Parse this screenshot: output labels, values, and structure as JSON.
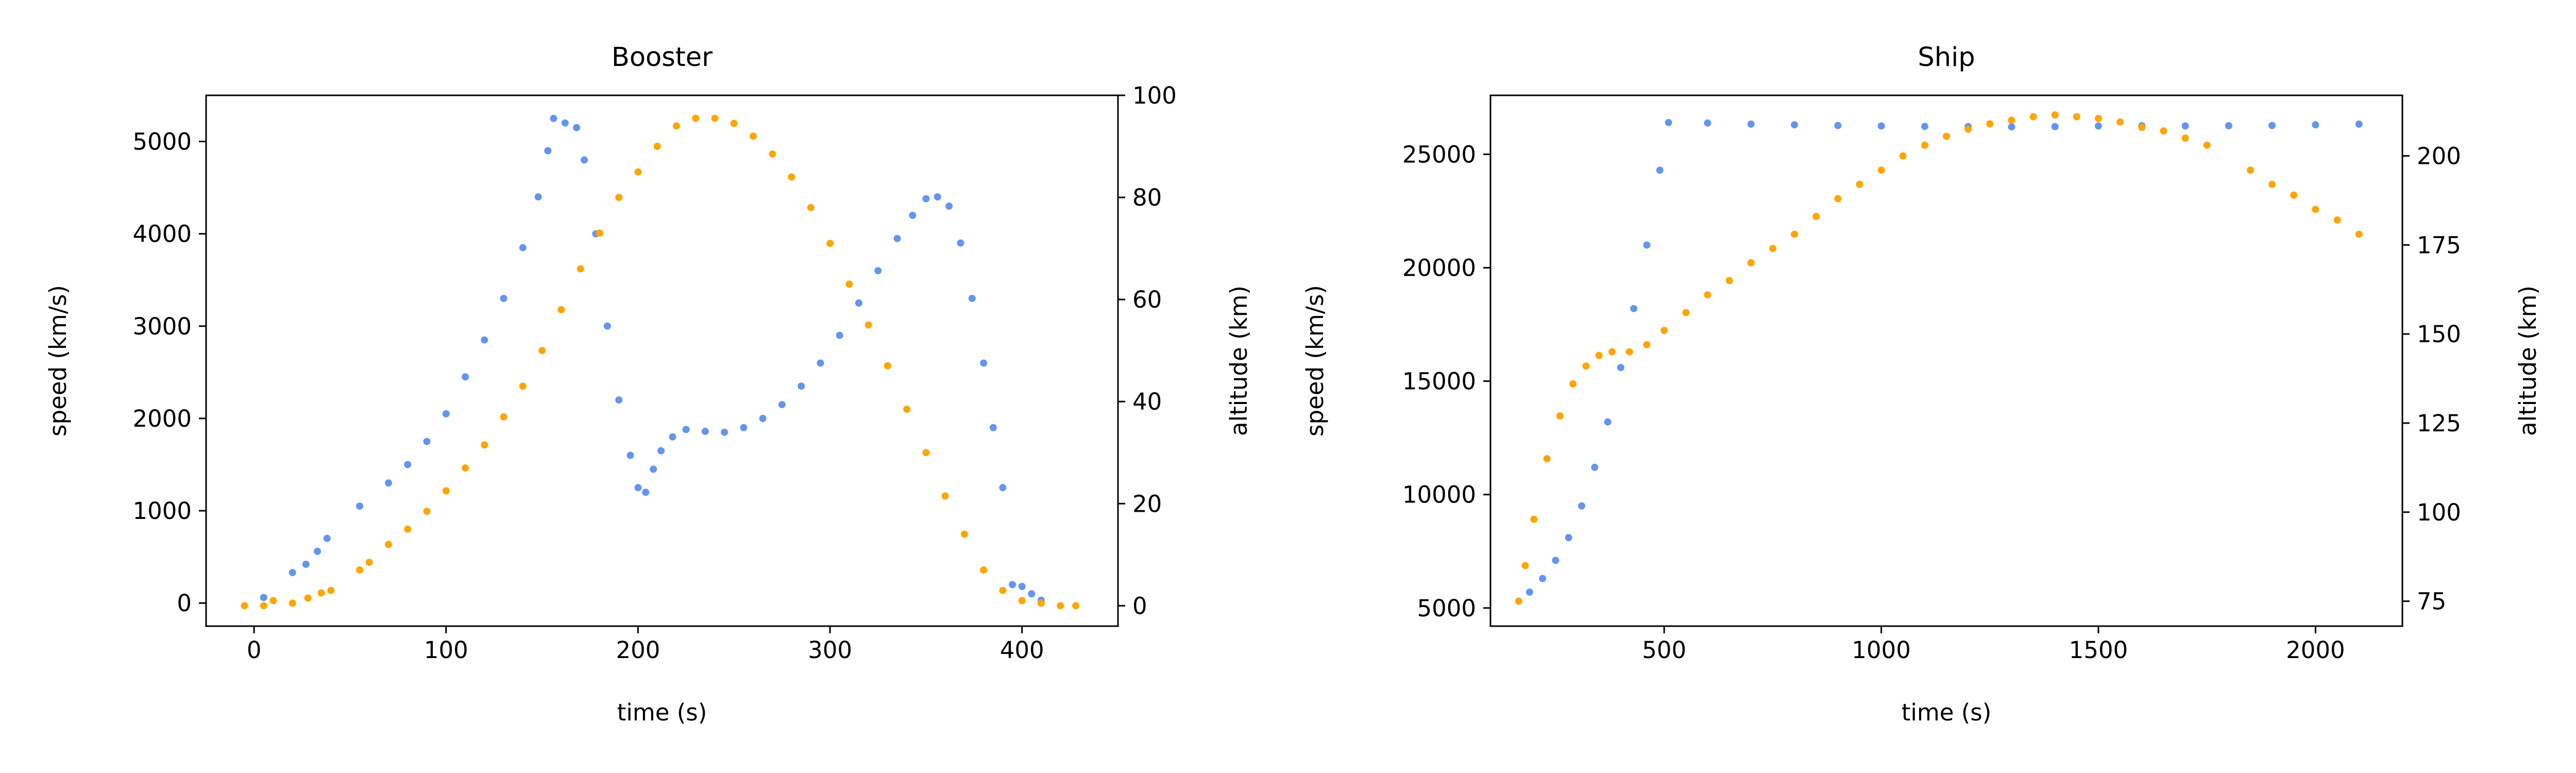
{
  "colors": {
    "speed": "#6495ed",
    "altitude": "#ffa500"
  },
  "chart_data": [
    {
      "type": "scatter",
      "title": "Booster",
      "xlabel": "time (s)",
      "ylabel": "speed (km/s)",
      "y2label": "altitude (km)",
      "xlim": [
        -25,
        450
      ],
      "ylim": [
        -250,
        5500
      ],
      "y2lim": [
        -4,
        100
      ],
      "xticks": [
        0,
        100,
        200,
        300,
        400
      ],
      "yticks": [
        0,
        1000,
        2000,
        3000,
        4000,
        5000
      ],
      "y2ticks": [
        0,
        20,
        40,
        60,
        80,
        100
      ],
      "grid": false,
      "series": [
        {
          "axis": "left",
          "color": "#6495ed",
          "points": [
            [
              5,
              60
            ],
            [
              20,
              330
            ],
            [
              27,
              420
            ],
            [
              33,
              560
            ],
            [
              38,
              700
            ],
            [
              55,
              1050
            ],
            [
              70,
              1300
            ],
            [
              80,
              1500
            ],
            [
              90,
              1750
            ],
            [
              100,
              2050
            ],
            [
              110,
              2450
            ],
            [
              120,
              2850
            ],
            [
              130,
              3300
            ],
            [
              140,
              3850
            ],
            [
              148,
              4400
            ],
            [
              153,
              4900
            ],
            [
              156,
              5250
            ],
            [
              162,
              5200
            ],
            [
              168,
              5150
            ],
            [
              172,
              4800
            ],
            [
              178,
              4000
            ],
            [
              184,
              3000
            ],
            [
              190,
              2200
            ],
            [
              196,
              1600
            ],
            [
              200,
              1250
            ],
            [
              204,
              1200
            ],
            [
              208,
              1450
            ],
            [
              212,
              1650
            ],
            [
              218,
              1800
            ],
            [
              225,
              1880
            ],
            [
              235,
              1860
            ],
            [
              245,
              1850
            ],
            [
              255,
              1900
            ],
            [
              265,
              2000
            ],
            [
              275,
              2150
            ],
            [
              285,
              2350
            ],
            [
              295,
              2600
            ],
            [
              305,
              2900
            ],
            [
              315,
              3250
            ],
            [
              325,
              3600
            ],
            [
              335,
              3950
            ],
            [
              343,
              4200
            ],
            [
              350,
              4380
            ],
            [
              356,
              4400
            ],
            [
              362,
              4300
            ],
            [
              368,
              3900
            ],
            [
              374,
              3300
            ],
            [
              380,
              2600
            ],
            [
              385,
              1900
            ],
            [
              390,
              1250
            ],
            [
              395,
              200
            ],
            [
              400,
              180
            ],
            [
              405,
              100
            ],
            [
              410,
              30
            ]
          ]
        },
        {
          "axis": "right",
          "color": "#ffa500",
          "points": [
            [
              -5,
              0
            ],
            [
              5,
              0
            ],
            [
              10,
              1
            ],
            [
              20,
              0.5
            ],
            [
              28,
              1.5
            ],
            [
              35,
              2.5
            ],
            [
              40,
              3
            ],
            [
              55,
              7
            ],
            [
              60,
              8.5
            ],
            [
              70,
              12
            ],
            [
              80,
              15
            ],
            [
              90,
              18.5
            ],
            [
              100,
              22.5
            ],
            [
              110,
              27
            ],
            [
              120,
              31.5
            ],
            [
              130,
              37
            ],
            [
              140,
              43
            ],
            [
              150,
              50
            ],
            [
              160,
              58
            ],
            [
              170,
              66
            ],
            [
              180,
              73
            ],
            [
              190,
              80
            ],
            [
              200,
              85
            ],
            [
              210,
              90
            ],
            [
              220,
              94
            ],
            [
              230,
              95.5
            ],
            [
              240,
              95.5
            ],
            [
              250,
              94.5
            ],
            [
              260,
              92
            ],
            [
              270,
              88.5
            ],
            [
              280,
              84
            ],
            [
              290,
              78
            ],
            [
              300,
              71
            ],
            [
              310,
              63
            ],
            [
              320,
              55
            ],
            [
              330,
              47
            ],
            [
              340,
              38.5
            ],
            [
              350,
              30
            ],
            [
              360,
              21.5
            ],
            [
              370,
              14
            ],
            [
              380,
              7
            ],
            [
              390,
              3
            ],
            [
              400,
              1
            ],
            [
              410,
              0.5
            ],
            [
              420,
              0
            ],
            [
              428,
              0
            ]
          ]
        }
      ]
    },
    {
      "type": "scatter",
      "title": "Ship",
      "xlabel": "time (s)",
      "ylabel": "speed (km/s)",
      "y2label": "altitude (km)",
      "xlim": [
        100,
        2200
      ],
      "ylim": [
        4200,
        27600
      ],
      "y2lim": [
        68,
        217
      ],
      "xticks": [
        500,
        1000,
        1500,
        2000
      ],
      "yticks": [
        5000,
        10000,
        15000,
        20000,
        25000
      ],
      "y2ticks": [
        75,
        100,
        125,
        150,
        175,
        200
      ],
      "grid": false,
      "series": [
        {
          "axis": "left",
          "color": "#6495ed",
          "points": [
            [
              165,
              5300
            ],
            [
              190,
              5700
            ],
            [
              220,
              6300
            ],
            [
              250,
              7100
            ],
            [
              280,
              8100
            ],
            [
              310,
              9500
            ],
            [
              340,
              11200
            ],
            [
              370,
              13200
            ],
            [
              400,
              15600
            ],
            [
              430,
              18200
            ],
            [
              460,
              21000
            ],
            [
              490,
              24300
            ],
            [
              510,
              26400
            ],
            [
              600,
              26380
            ],
            [
              700,
              26330
            ],
            [
              800,
              26300
            ],
            [
              900,
              26270
            ],
            [
              1000,
              26250
            ],
            [
              1100,
              26230
            ],
            [
              1200,
              26220
            ],
            [
              1300,
              26210
            ],
            [
              1400,
              26220
            ],
            [
              1500,
              26250
            ],
            [
              1600,
              26260
            ],
            [
              1700,
              26250
            ],
            [
              1800,
              26260
            ],
            [
              1900,
              26270
            ],
            [
              2000,
              26300
            ],
            [
              2100,
              26330
            ]
          ]
        },
        {
          "axis": "right",
          "color": "#ffa500",
          "points": [
            [
              165,
              75
            ],
            [
              180,
              85
            ],
            [
              200,
              98
            ],
            [
              230,
              115
            ],
            [
              260,
              127
            ],
            [
              290,
              136
            ],
            [
              320,
              141
            ],
            [
              350,
              144
            ],
            [
              380,
              145
            ],
            [
              420,
              145
            ],
            [
              460,
              147
            ],
            [
              500,
              151
            ],
            [
              550,
              156
            ],
            [
              600,
              161
            ],
            [
              650,
              165
            ],
            [
              700,
              170
            ],
            [
              750,
              174
            ],
            [
              800,
              178
            ],
            [
              850,
              183
            ],
            [
              900,
              188
            ],
            [
              950,
              192
            ],
            [
              1000,
              196
            ],
            [
              1050,
              200
            ],
            [
              1100,
              203
            ],
            [
              1150,
              205.5
            ],
            [
              1200,
              207.5
            ],
            [
              1250,
              209
            ],
            [
              1300,
              210
            ],
            [
              1350,
              211
            ],
            [
              1400,
              211.5
            ],
            [
              1450,
              211
            ],
            [
              1500,
              210.5
            ],
            [
              1550,
              209.5
            ],
            [
              1600,
              208
            ],
            [
              1650,
              207
            ],
            [
              1700,
              205
            ],
            [
              1750,
              203
            ],
            [
              1850,
              196
            ],
            [
              1900,
              192
            ],
            [
              1950,
              189
            ],
            [
              2000,
              185
            ],
            [
              2050,
              182
            ],
            [
              2100,
              178
            ]
          ]
        }
      ]
    }
  ]
}
